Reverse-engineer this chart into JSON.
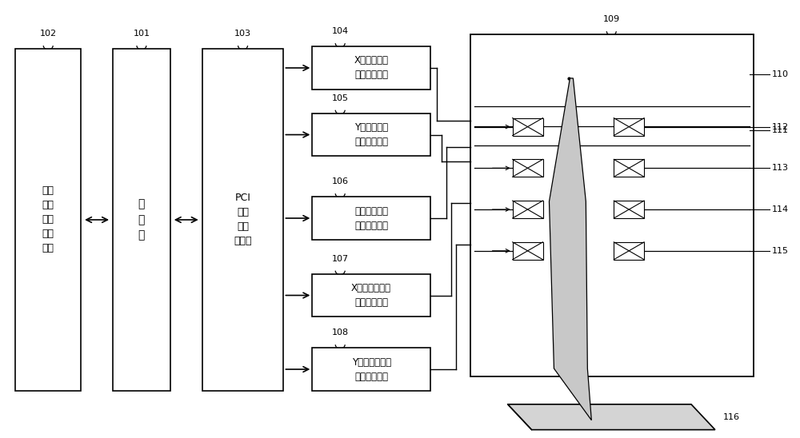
{
  "bg_color": "#ffffff",
  "line_color": "#000000",
  "text_102": "高速\n偏转\n扫描\n控制\n软件",
  "text_101": "工\n控\n机",
  "text_103": "PCI\n任意\n波形\n发生卡",
  "text_104": "X方向消像散\n线圈驱动电路",
  "text_105": "Y方向消像散\n线圈驱动电路",
  "text_106": "高速动态聚焦\n线圈驱动电路",
  "text_107": "X方向偏转扫描\n线圈驱动电路",
  "text_108": "Y方向偏转扫描\n线圈驱动电路",
  "labels": [
    "102",
    "101",
    "103",
    "104",
    "105",
    "106",
    "107",
    "108",
    "109",
    "110",
    "111",
    "112",
    "113",
    "114",
    "115",
    "116"
  ]
}
